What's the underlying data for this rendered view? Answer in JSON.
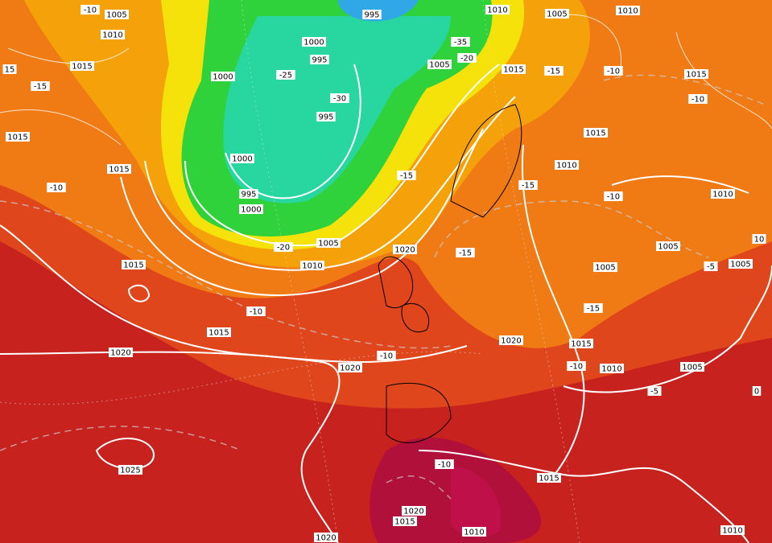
{
  "labels": [
    "-10",
    "1005",
    "1010",
    "995",
    "1010",
    "1005",
    "1010",
    "1015",
    "15",
    "-15",
    "1000",
    "1000",
    "995",
    "-25",
    "-35",
    "-20",
    "1005",
    "1015",
    "-15",
    "-10",
    "1015",
    "-10",
    "-30",
    "995",
    "1015",
    "1015",
    "1015",
    "1000",
    "995",
    "1000",
    "-10",
    "1010",
    "-15",
    "-15",
    "-10",
    "1010",
    "-20",
    "1005",
    "1010",
    "1020",
    "-15",
    "1005",
    "1015",
    "1005",
    "-5",
    "1005",
    "10",
    "-10",
    "-15",
    "1015",
    "1020",
    "-10",
    "1020",
    "1020",
    "1015",
    "-10",
    "1010",
    "1005",
    "-5",
    "0",
    "1025",
    "-10",
    "1015",
    "1020",
    "1015",
    "1010",
    "1020",
    "1010"
  ]
}
